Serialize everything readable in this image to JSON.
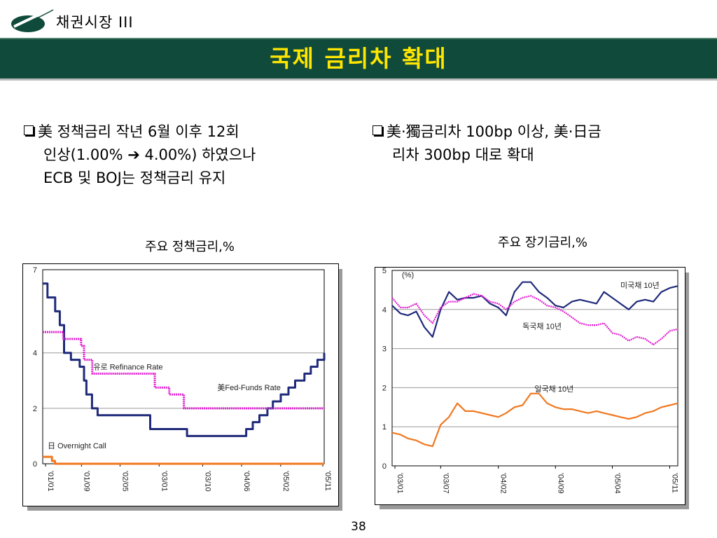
{
  "header": {
    "section_title": "채권시장 III",
    "banner_title": "국제 금리차 확대",
    "colors": {
      "banner": "#0f4a3a",
      "banner_text": "#ffe600"
    }
  },
  "bullets": {
    "left": {
      "line1": "美 정책금리 작년 6월 이후 12회",
      "line2": "인상(1.00% ➔ 4.00%) 하였으나",
      "line3": "ECB 및 BOJ는 정책금리 유지"
    },
    "right": {
      "line1": "美·獨금리차 100bp 이상, 美·日금",
      "line2": "리차 300bp 대로 확대"
    }
  },
  "chart_data": [
    {
      "type": "line",
      "title": "주요 정책금리,%",
      "ylim": [
        0,
        7
      ],
      "yticks": [
        0,
        2,
        4,
        7
      ],
      "x_ticks": [
        "'01/01",
        "'01/09",
        "'02/05",
        "'03/01",
        "'03/10",
        "'04/06",
        "'05/02",
        "'05/11"
      ],
      "x_range": [
        "2001-01",
        "2005-11"
      ],
      "grid": true,
      "series": [
        {
          "name": "美Fed-Funds Rate",
          "color": "#1f2a7a",
          "points": [
            [
              "2001-01",
              6.5
            ],
            [
              "2001-01-31",
              6.0
            ],
            [
              "2001-03-20",
              5.5
            ],
            [
              "2001-04-18",
              5.0
            ],
            [
              "2001-05-15",
              4.0
            ],
            [
              "2001-06-27",
              3.75
            ],
            [
              "2001-08-21",
              3.5
            ],
            [
              "2001-09-17",
              3.0
            ],
            [
              "2001-10-02",
              2.5
            ],
            [
              "2001-11-06",
              2.0
            ],
            [
              "2001-12-11",
              1.75
            ],
            [
              "2002-11-06",
              1.25
            ],
            [
              "2003-06-25",
              1.0
            ],
            [
              "2004-06-30",
              1.25
            ],
            [
              "2004-08-10",
              1.5
            ],
            [
              "2004-09-21",
              1.75
            ],
            [
              "2004-11-10",
              2.0
            ],
            [
              "2004-12-14",
              2.25
            ],
            [
              "2005-02-02",
              2.5
            ],
            [
              "2005-03-22",
              2.75
            ],
            [
              "2005-05-03",
              3.0
            ],
            [
              "2005-06-30",
              3.25
            ],
            [
              "2005-08-09",
              3.5
            ],
            [
              "2005-09-20",
              3.75
            ],
            [
              "2005-11-01",
              4.0
            ]
          ]
        },
        {
          "name": "유로 Refinance Rate",
          "color": "#e020d0",
          "points": [
            [
              "2001-01",
              4.75
            ],
            [
              "2001-05-10",
              4.5
            ],
            [
              "2001-08-30",
              4.25
            ],
            [
              "2001-09-17",
              3.75
            ],
            [
              "2001-11-08",
              3.25
            ],
            [
              "2002-12-05",
              2.75
            ],
            [
              "2003-03-06",
              2.5
            ],
            [
              "2003-06-05",
              2.0
            ]
          ]
        },
        {
          "name": "日 Overnight Call",
          "color": "#f07820",
          "points": [
            [
              "2001-01",
              0.25
            ],
            [
              "2001-02-28",
              0.1
            ],
            [
              "2001-03-19",
              0.0
            ],
            [
              "2005-11",
              0.0
            ]
          ]
        }
      ],
      "labels": {
        "fed": "美Fed-Funds Rate",
        "euro": "유로 Refinance Rate",
        "japan": "日 Overnight Call"
      }
    },
    {
      "type": "line",
      "title": "주요 장기금리,%",
      "unit_label": "(%)",
      "ylim": [
        0,
        5
      ],
      "yticks": [
        0,
        1,
        2,
        3,
        4,
        5
      ],
      "x_ticks": [
        "'03/01",
        "'03/07",
        "'04/02",
        "'04/09",
        "'05/04",
        "'05/11"
      ],
      "x_range": [
        "2003-01",
        "2005-12"
      ],
      "grid": true,
      "series": [
        {
          "name": "미국채 10년",
          "color": "#1f2a7a",
          "points": [
            [
              "2003-01",
              4.1
            ],
            [
              "2003-02",
              3.9
            ],
            [
              "2003-03",
              3.85
            ],
            [
              "2003-04",
              3.95
            ],
            [
              "2003-05",
              3.55
            ],
            [
              "2003-06",
              3.3
            ],
            [
              "2003-07",
              4.0
            ],
            [
              "2003-08",
              4.45
            ],
            [
              "2003-09",
              4.25
            ],
            [
              "2003-10",
              4.3
            ],
            [
              "2003-11",
              4.3
            ],
            [
              "2003-12",
              4.35
            ],
            [
              "2004-01",
              4.15
            ],
            [
              "2004-02",
              4.05
            ],
            [
              "2004-03",
              3.85
            ],
            [
              "2004-04",
              4.45
            ],
            [
              "2004-05",
              4.7
            ],
            [
              "2004-06",
              4.7
            ],
            [
              "2004-07",
              4.45
            ],
            [
              "2004-08",
              4.3
            ],
            [
              "2004-09",
              4.1
            ],
            [
              "2004-10",
              4.05
            ],
            [
              "2004-11",
              4.2
            ],
            [
              "2004-12",
              4.25
            ],
            [
              "2005-01",
              4.2
            ],
            [
              "2005-02",
              4.15
            ],
            [
              "2005-03",
              4.45
            ],
            [
              "2005-04",
              4.3
            ],
            [
              "2005-05",
              4.15
            ],
            [
              "2005-06",
              4.0
            ],
            [
              "2005-07",
              4.2
            ],
            [
              "2005-08",
              4.25
            ],
            [
              "2005-09",
              4.2
            ],
            [
              "2005-10",
              4.45
            ],
            [
              "2005-11",
              4.55
            ],
            [
              "2005-12",
              4.6
            ]
          ]
        },
        {
          "name": "독국채 10년",
          "color": "#e020d0",
          "points": [
            [
              "2003-01",
              4.3
            ],
            [
              "2003-02",
              4.05
            ],
            [
              "2003-03",
              4.05
            ],
            [
              "2003-04",
              4.15
            ],
            [
              "2003-05",
              3.85
            ],
            [
              "2003-06",
              3.65
            ],
            [
              "2003-07",
              4.05
            ],
            [
              "2003-08",
              4.2
            ],
            [
              "2003-09",
              4.2
            ],
            [
              "2003-10",
              4.3
            ],
            [
              "2003-11",
              4.4
            ],
            [
              "2003-12",
              4.35
            ],
            [
              "2004-01",
              4.2
            ],
            [
              "2004-02",
              4.15
            ],
            [
              "2004-03",
              4.0
            ],
            [
              "2004-04",
              4.2
            ],
            [
              "2004-05",
              4.3
            ],
            [
              "2004-06",
              4.35
            ],
            [
              "2004-07",
              4.25
            ],
            [
              "2004-08",
              4.1
            ],
            [
              "2004-09",
              4.05
            ],
            [
              "2004-10",
              3.95
            ],
            [
              "2004-11",
              3.8
            ],
            [
              "2004-12",
              3.65
            ],
            [
              "2005-01",
              3.6
            ],
            [
              "2005-02",
              3.6
            ],
            [
              "2005-03",
              3.65
            ],
            [
              "2005-04",
              3.4
            ],
            [
              "2005-05",
              3.35
            ],
            [
              "2005-06",
              3.2
            ],
            [
              "2005-07",
              3.3
            ],
            [
              "2005-08",
              3.25
            ],
            [
              "2005-09",
              3.1
            ],
            [
              "2005-10",
              3.25
            ],
            [
              "2005-11",
              3.45
            ],
            [
              "2005-12",
              3.5
            ]
          ]
        },
        {
          "name": "일국채 10년",
          "color": "#f07820",
          "points": [
            [
              "2003-01",
              0.85
            ],
            [
              "2003-02",
              0.8
            ],
            [
              "2003-03",
              0.7
            ],
            [
              "2003-04",
              0.65
            ],
            [
              "2003-05",
              0.55
            ],
            [
              "2003-06",
              0.5
            ],
            [
              "2003-07",
              1.05
            ],
            [
              "2003-08",
              1.25
            ],
            [
              "2003-09",
              1.6
            ],
            [
              "2003-10",
              1.4
            ],
            [
              "2003-11",
              1.4
            ],
            [
              "2003-12",
              1.35
            ],
            [
              "2004-01",
              1.3
            ],
            [
              "2004-02",
              1.25
            ],
            [
              "2004-03",
              1.35
            ],
            [
              "2004-04",
              1.5
            ],
            [
              "2004-05",
              1.55
            ],
            [
              "2004-06",
              1.85
            ],
            [
              "2004-07",
              1.85
            ],
            [
              "2004-08",
              1.6
            ],
            [
              "2004-09",
              1.5
            ],
            [
              "2004-10",
              1.45
            ],
            [
              "2004-11",
              1.45
            ],
            [
              "2004-12",
              1.4
            ],
            [
              "2005-01",
              1.35
            ],
            [
              "2005-02",
              1.4
            ],
            [
              "2005-03",
              1.35
            ],
            [
              "2005-04",
              1.3
            ],
            [
              "2005-05",
              1.25
            ],
            [
              "2005-06",
              1.2
            ],
            [
              "2005-07",
              1.25
            ],
            [
              "2005-08",
              1.35
            ],
            [
              "2005-09",
              1.4
            ],
            [
              "2005-10",
              1.5
            ],
            [
              "2005-11",
              1.55
            ],
            [
              "2005-12",
              1.6
            ]
          ]
        }
      ],
      "labels": {
        "us": "미국채 10년",
        "de": "독국채 10년",
        "jp": "일국채 10년"
      }
    }
  ],
  "footer": {
    "page_number": "38"
  }
}
